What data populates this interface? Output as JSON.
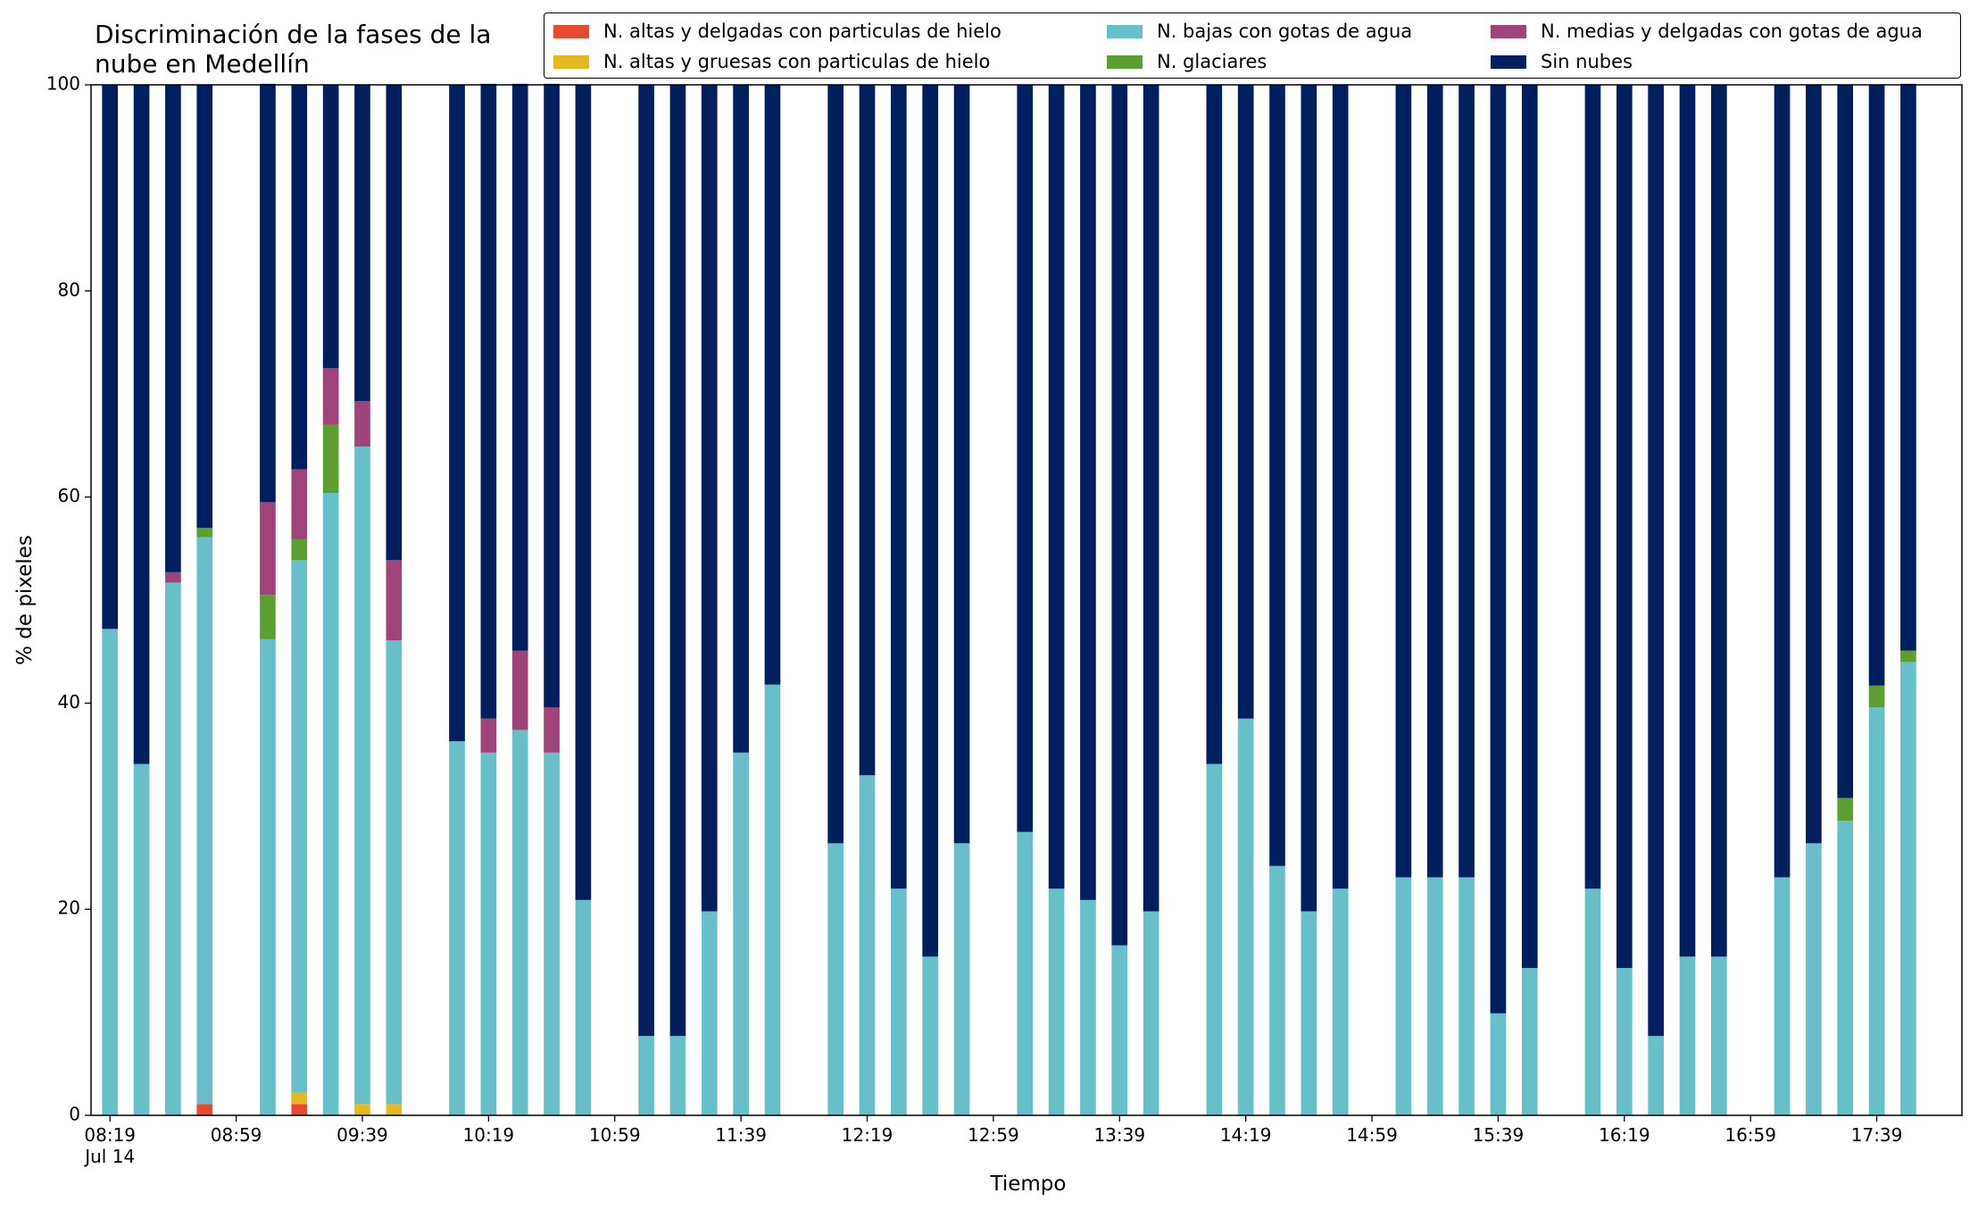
{
  "chart_data": {
    "type": "stacked_bar",
    "title": "Discriminación de la fases de la\nnube en Medellín",
    "x_label": "Tiempo",
    "y_label": "% de pixeles",
    "x": [
      "08:19",
      "08:29",
      "08:39",
      "08:49",
      "09:09",
      "09:19",
      "09:29",
      "09:39",
      "09:49",
      "10:09",
      "10:19",
      "10:29",
      "10:39",
      "10:49",
      "11:09",
      "11:19",
      "11:29",
      "11:39",
      "11:49",
      "12:09",
      "12:19",
      "12:29",
      "12:39",
      "12:49",
      "13:09",
      "13:19",
      "13:29",
      "13:39",
      "13:49",
      "14:09",
      "14:19",
      "14:29",
      "14:39",
      "14:49",
      "15:09",
      "15:19",
      "15:29",
      "15:39",
      "15:49",
      "16:09",
      "16:19",
      "16:29",
      "16:39",
      "16:49",
      "17:09",
      "17:19",
      "17:29",
      "17:39",
      "17:49"
    ],
    "xlim": [
      "08:13",
      "18:06"
    ],
    "xticks": [
      {
        "value": "08:19",
        "label": "08:19\nJul 14"
      },
      "08:59",
      "09:39",
      "10:19",
      "10:59",
      "11:39",
      "12:19",
      "12:59",
      "13:39",
      "14:19",
      "14:59",
      "15:39",
      "16:19",
      "16:59",
      "17:39"
    ],
    "ylim": [
      0,
      100
    ],
    "yticks": [
      0,
      20,
      40,
      60,
      80,
      100
    ],
    "series": [
      {
        "name": "N. altas y delgadas con particulas de hielo",
        "color": "#e84a2f",
        "values": [
          0,
          0,
          0,
          1.1,
          0,
          1.1,
          0,
          0,
          0,
          0,
          0,
          0,
          0,
          0,
          0,
          0,
          0,
          0,
          0,
          0,
          0,
          0,
          0,
          0,
          0,
          0,
          0,
          0,
          0,
          0,
          0,
          0,
          0,
          0,
          0,
          0,
          0,
          0,
          0,
          0,
          0,
          0,
          0,
          0,
          0,
          0,
          0,
          0,
          0
        ]
      },
      {
        "name": "N. altas y gruesas con particulas de hielo",
        "color": "#e6b820",
        "values": [
          0,
          0,
          0,
          0,
          0,
          1.1,
          0,
          1.1,
          1.1,
          0,
          0,
          0,
          0,
          0,
          0,
          0,
          0,
          0,
          0,
          0,
          0,
          0,
          0,
          0,
          0,
          0,
          0,
          0,
          0,
          0,
          0,
          0,
          0,
          0,
          0,
          0,
          0,
          0,
          0,
          0,
          0,
          0,
          0,
          0,
          0,
          0,
          0,
          0,
          0
        ]
      },
      {
        "name": "N. bajas con gotas de agua",
        "color": "#66bfc9",
        "values": [
          47.2,
          34.1,
          51.7,
          55.0,
          46.2,
          51.7,
          60.4,
          63.8,
          45.0,
          36.3,
          35.2,
          37.4,
          35.2,
          20.9,
          7.7,
          7.7,
          19.8,
          35.2,
          41.8,
          26.4,
          33.0,
          22.0,
          15.4,
          26.4,
          27.5,
          22.0,
          20.9,
          16.5,
          19.8,
          34.1,
          38.5,
          24.2,
          19.8,
          22.0,
          23.1,
          23.1,
          23.1,
          9.9,
          14.3,
          22.0,
          14.3,
          7.7,
          15.4,
          15.4,
          23.1,
          26.4,
          28.6,
          39.6,
          44.0
        ]
      },
      {
        "name": "N. glaciares",
        "color": "#5c9e31",
        "values": [
          0,
          0,
          0,
          0.9,
          4.3,
          2.0,
          6.6,
          0,
          0,
          0,
          0,
          0,
          0,
          0,
          0,
          0,
          0,
          0,
          0,
          0,
          0,
          0,
          0,
          0,
          0,
          0,
          0,
          0,
          0,
          0,
          0,
          0,
          0,
          0,
          0,
          0,
          0,
          0,
          0,
          0,
          0,
          0,
          0,
          0,
          0,
          0,
          2.2,
          2.1,
          1.1
        ]
      },
      {
        "name": "N. medias y delgadas con gotas de agua",
        "color": "#a0437a",
        "values": [
          0,
          0,
          1.0,
          0,
          9.0,
          6.8,
          5.5,
          4.4,
          7.8,
          0,
          3.3,
          7.7,
          4.4,
          0,
          0,
          0,
          0,
          0,
          0,
          0,
          0,
          0,
          0,
          0,
          0,
          0,
          0,
          0,
          0,
          0,
          0,
          0,
          0,
          0,
          0,
          0,
          0,
          0,
          0,
          0,
          0,
          0,
          0,
          0,
          0,
          0,
          0,
          0,
          0
        ]
      },
      {
        "name": "Sin nubes",
        "color": "#001f5f",
        "values": [
          52.8,
          65.9,
          47.3,
          43.0,
          40.6,
          37.3,
          27.5,
          30.7,
          46.1,
          63.7,
          61.6,
          55.0,
          60.5,
          79.1,
          92.3,
          92.3,
          80.2,
          64.8,
          58.2,
          73.6,
          67.0,
          78.0,
          84.6,
          73.6,
          72.5,
          78.0,
          79.1,
          83.5,
          80.2,
          65.9,
          61.5,
          75.8,
          80.2,
          78.0,
          76.9,
          76.9,
          76.9,
          90.1,
          85.7,
          78.0,
          85.7,
          92.3,
          84.6,
          84.6,
          76.9,
          73.6,
          69.2,
          58.3,
          55.0
        ]
      }
    ]
  }
}
